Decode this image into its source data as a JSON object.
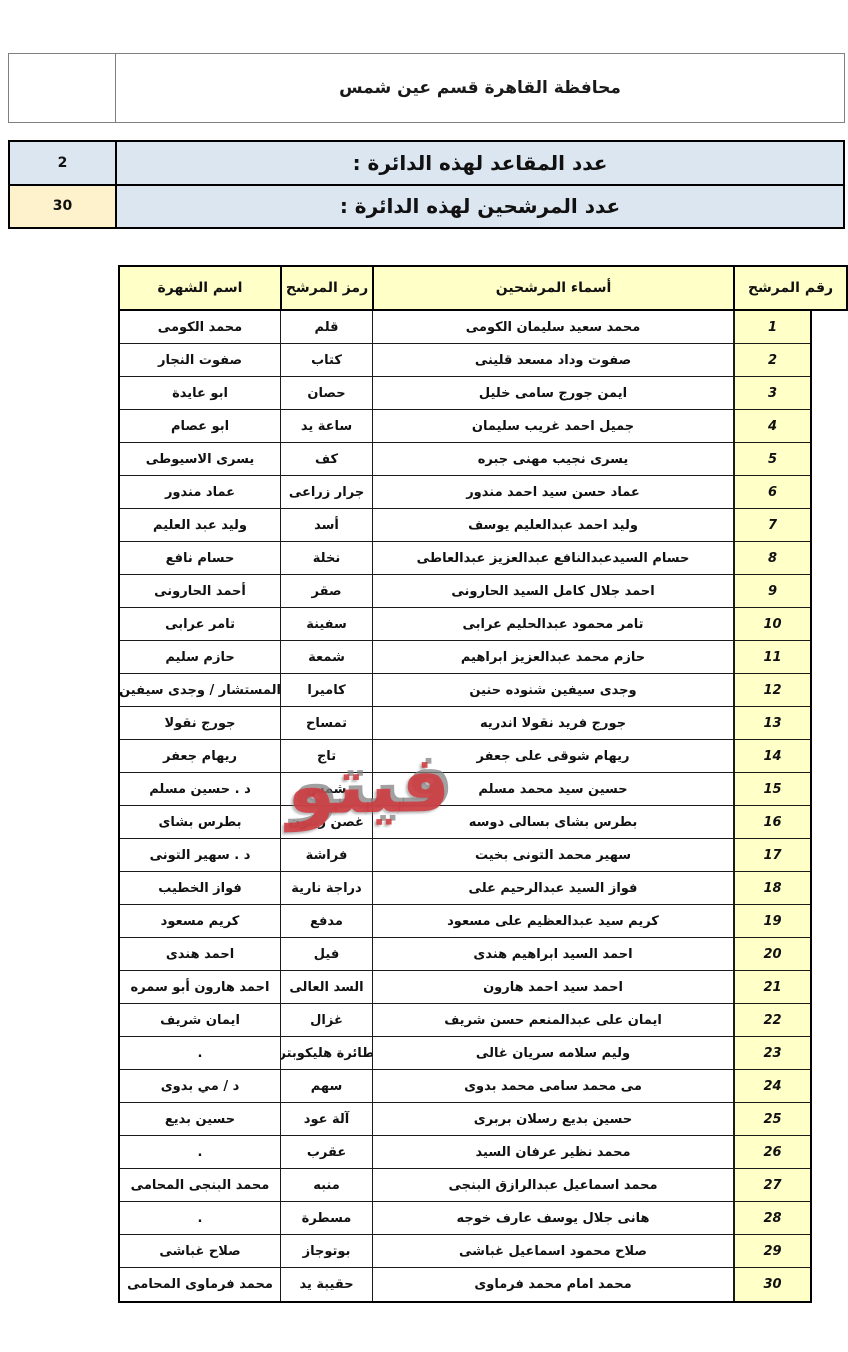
{
  "page": {
    "title": "محافظة القاهرة قسم عين شمس"
  },
  "stats": [
    {
      "label": "عدد المقاعد لهذه الدائرة :",
      "value": "2"
    },
    {
      "label": "عدد المرشحين لهذه الدائرة :",
      "value": "30"
    }
  ],
  "table": {
    "headers": {
      "number": "رقم المرشح",
      "name": "أسماء المرشحين",
      "symbol": "رمز المرشح",
      "alias": "اسم الشهرة"
    },
    "rows": [
      {
        "number": "1",
        "name": "محمد سعيد سليمان الكومى",
        "symbol": "قلم",
        "alias": "محمد الكومى"
      },
      {
        "number": "2",
        "name": "صفوت وداد مسعد قلينى",
        "symbol": "كتاب",
        "alias": "صفوت النجار"
      },
      {
        "number": "3",
        "name": "ايمن جورج سامى خليل",
        "symbol": "حصان",
        "alias": "ابو عايدة"
      },
      {
        "number": "4",
        "name": "جميل احمد غريب سليمان",
        "symbol": "ساعة يد",
        "alias": "ابو عصام"
      },
      {
        "number": "5",
        "name": "يسرى نجيب مهنى جبره",
        "symbol": "كف",
        "alias": "يسرى الاسيوطى"
      },
      {
        "number": "6",
        "name": "عماد حسن سيد احمد مندور",
        "symbol": "جرار زراعى",
        "alias": "عماد مندور"
      },
      {
        "number": "7",
        "name": "وليد احمد عبدالعليم يوسف",
        "symbol": "أسد",
        "alias": "وليد عبد العليم"
      },
      {
        "number": "8",
        "name": "حسام السيدعبدالنافع عبدالعزيز عبدالعاطى",
        "symbol": "نخلة",
        "alias": "حسام نافع"
      },
      {
        "number": "9",
        "name": "احمد جلال كامل السيد الحارونى",
        "symbol": "صقر",
        "alias": "أحمد الحارونى"
      },
      {
        "number": "10",
        "name": "تامر محمود عبدالحليم عرابى",
        "symbol": "سفينة",
        "alias": "تامر عرابى"
      },
      {
        "number": "11",
        "name": "حازم محمد عبدالعزيز ابراهيم",
        "symbol": "شمعة",
        "alias": "حازم سليم"
      },
      {
        "number": "12",
        "name": "وجدى سيفين شنوده حنين",
        "symbol": "كاميرا",
        "alias": "المستشار / وجدى سيفين"
      },
      {
        "number": "13",
        "name": "جورج فريد نقولا اندريه",
        "symbol": "تمساح",
        "alias": "جورج نقولا"
      },
      {
        "number": "14",
        "name": "ريهام شوقى على جعفر",
        "symbol": "تاج",
        "alias": "ريهام جعفر"
      },
      {
        "number": "15",
        "name": "حسين سيد محمد مسلم",
        "symbol": "شمس",
        "alias": "د . حسين مسلم"
      },
      {
        "number": "16",
        "name": "بطرس بشاى بسالى دوسه",
        "symbol": "غصن زيتون",
        "alias": "بطرس بشاى"
      },
      {
        "number": "17",
        "name": "سهير محمد التونى بخيت",
        "symbol": "فراشة",
        "alias": "د . سهير التونى"
      },
      {
        "number": "18",
        "name": "فواز السيد عبدالرحيم على",
        "symbol": "دراجة نارية",
        "alias": "فواز الخطيب"
      },
      {
        "number": "19",
        "name": "كريم سيد عبدالعظيم على مسعود",
        "symbol": "مدفع",
        "alias": "كريم مسعود"
      },
      {
        "number": "20",
        "name": "احمد السيد ابراهيم هندى",
        "symbol": "فيل",
        "alias": "احمد هندى"
      },
      {
        "number": "21",
        "name": "احمد سيد احمد هارون",
        "symbol": "السد العالى",
        "alias": "احمد هارون أبو سمره"
      },
      {
        "number": "22",
        "name": "ايمان على عبدالمنعم حسن شريف",
        "symbol": "غزال",
        "alias": "ايمان شريف"
      },
      {
        "number": "23",
        "name": "وليم سلامه سريان غالى",
        "symbol": "طائرة هليكوبتر",
        "alias": "."
      },
      {
        "number": "24",
        "name": "مى محمد سامى محمد بدوى",
        "symbol": "سهم",
        "alias": "د / مي بدوى"
      },
      {
        "number": "25",
        "name": "حسين بديع رسلان بربرى",
        "symbol": "آلة عود",
        "alias": "حسين بديع"
      },
      {
        "number": "26",
        "name": "محمد نظير عرفان السيد",
        "symbol": "عقرب",
        "alias": "."
      },
      {
        "number": "27",
        "name": "محمد اسماعيل عبدالرازق البنجى",
        "symbol": "منبه",
        "alias": "محمد البنجى المحامى"
      },
      {
        "number": "28",
        "name": "هانى جلال يوسف عارف خوجه",
        "symbol": "مسطرة",
        "alias": "."
      },
      {
        "number": "29",
        "name": "صلاح محمود اسماعيل غباشى",
        "symbol": "بوتوجاز",
        "alias": "صلاح غباشى"
      },
      {
        "number": "30",
        "name": "محمد امام محمد فرماوى",
        "symbol": "حقيبة يد",
        "alias": "محمد فرماوى المحامى"
      }
    ]
  },
  "watermark": {
    "text": "فيتو"
  },
  "colors": {
    "stat_row_bg": "#dce6f1",
    "candidates_value_bg": "#fdf2cc",
    "table_yellow_bg": "#ffffc8",
    "border_dark": "#000000",
    "border_gray": "#7f7f7f",
    "watermark_red": "#cf3a40"
  }
}
